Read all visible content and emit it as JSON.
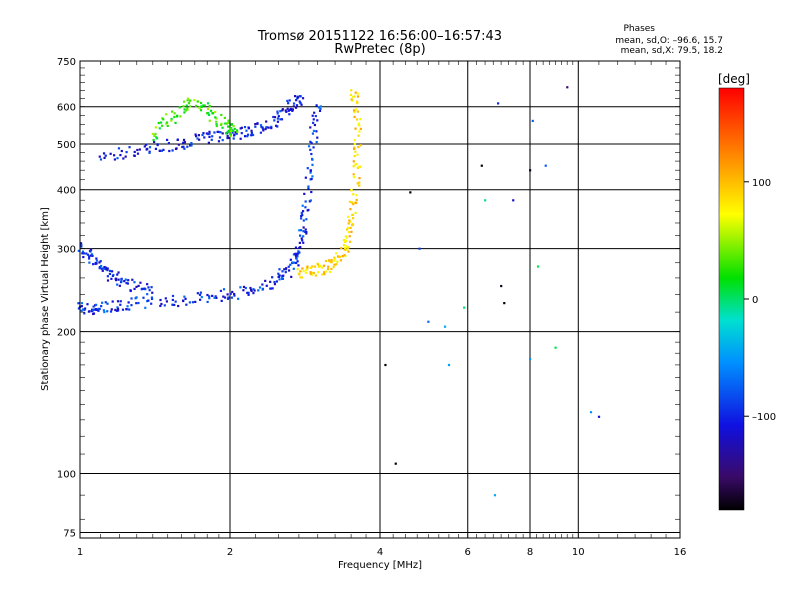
{
  "chart_data": {
    "type": "scatter",
    "title": "Tromsø 20151122 16:56:00–16:57:43",
    "subtitle": "RwPretec (8p)",
    "stats": {
      "heading": "Phases",
      "line1": "mean, sd,O: –96.6, 15.7",
      "line2": "mean, sd,X:  79.5, 18.2"
    },
    "xlabel": "Frequency [MHz]",
    "ylabel": "Stationary phase Virtual Height [km]",
    "x_scale": "log",
    "y_scale": "log",
    "xlim": [
      1,
      16
    ],
    "ylim": [
      73,
      750
    ],
    "x_ticks": [
      1,
      2,
      4,
      6,
      8,
      10,
      16
    ],
    "x_tick_labels": [
      "1",
      "2",
      "4",
      "6",
      "8",
      "10",
      "16"
    ],
    "y_ticks": [
      75,
      100,
      200,
      300,
      400,
      500,
      600,
      750
    ],
    "y_tick_labels": [
      "75",
      "100",
      "200",
      "300",
      "400",
      "500",
      "600",
      "750"
    ],
    "grid": true,
    "colorbar": {
      "label": "[deg]",
      "range": [
        -180,
        180
      ],
      "ticks": [
        100,
        0,
        -100
      ],
      "tick_labels": [
        "100",
        "0",
        "–100"
      ]
    },
    "series": [
      {
        "trace": "o-mode lower F-layer trace",
        "x": [
          1.0,
          1.05,
          1.1,
          1.2,
          1.3,
          1.5,
          1.7,
          1.9,
          2.1,
          2.3,
          2.5,
          2.6,
          2.7,
          2.75,
          2.8,
          2.85,
          2.9,
          2.95,
          3.0
        ],
        "y": [
          225,
          223,
          225,
          228,
          230,
          232,
          235,
          238,
          242,
          248,
          258,
          268,
          285,
          300,
          330,
          380,
          450,
          540,
          620
        ],
        "phase": -100
      },
      {
        "trace": "x-mode F-layer trace",
        "x": [
          2.75,
          2.9,
          3.05,
          3.2,
          3.35,
          3.45,
          3.5,
          3.55,
          3.6,
          3.6,
          3.58,
          3.55
        ],
        "y": [
          265,
          268,
          272,
          278,
          290,
          310,
          340,
          380,
          440,
          520,
          600,
          650
        ],
        "phase": 90
      },
      {
        "trace": "o-mode upper F-layer trace",
        "x": [
          1.1,
          1.25,
          1.4,
          1.55,
          1.7,
          1.85,
          2.0,
          2.15,
          2.3,
          2.45,
          2.6,
          2.7,
          2.8
        ],
        "y": [
          470,
          480,
          490,
          500,
          510,
          520,
          525,
          530,
          540,
          560,
          590,
          615,
          630
        ],
        "phase": -110
      },
      {
        "trace": "green cluster",
        "x": [
          1.4,
          1.5,
          1.6,
          1.7,
          1.8,
          1.9,
          2.0,
          2.05
        ],
        "y": [
          520,
          560,
          600,
          610,
          590,
          560,
          540,
          520
        ],
        "phase": 30
      },
      {
        "trace": "low-frequency trace",
        "x": [
          1.0,
          1.05,
          1.1,
          1.15,
          1.2,
          1.3,
          1.4
        ],
        "y": [
          300,
          290,
          275,
          265,
          255,
          248,
          244
        ],
        "phase": -105
      },
      {
        "trace": "sparse points",
        "x": [
          4.1,
          4.3,
          4.8,
          5.0,
          5.4,
          5.5,
          6.4,
          6.5,
          6.9,
          7.0,
          7.1,
          7.4,
          8.0,
          8.1,
          8.3,
          8.6,
          9.0,
          9.5,
          10.6,
          11.0,
          4.6,
          5.9,
          6.8,
          8.0
        ],
        "y": [
          170,
          105,
          300,
          210,
          205,
          170,
          450,
          380,
          610,
          250,
          230,
          380,
          440,
          560,
          275,
          450,
          185,
          660,
          135,
          132,
          395,
          225,
          90,
          175
        ],
        "phase": -100
      }
    ]
  }
}
